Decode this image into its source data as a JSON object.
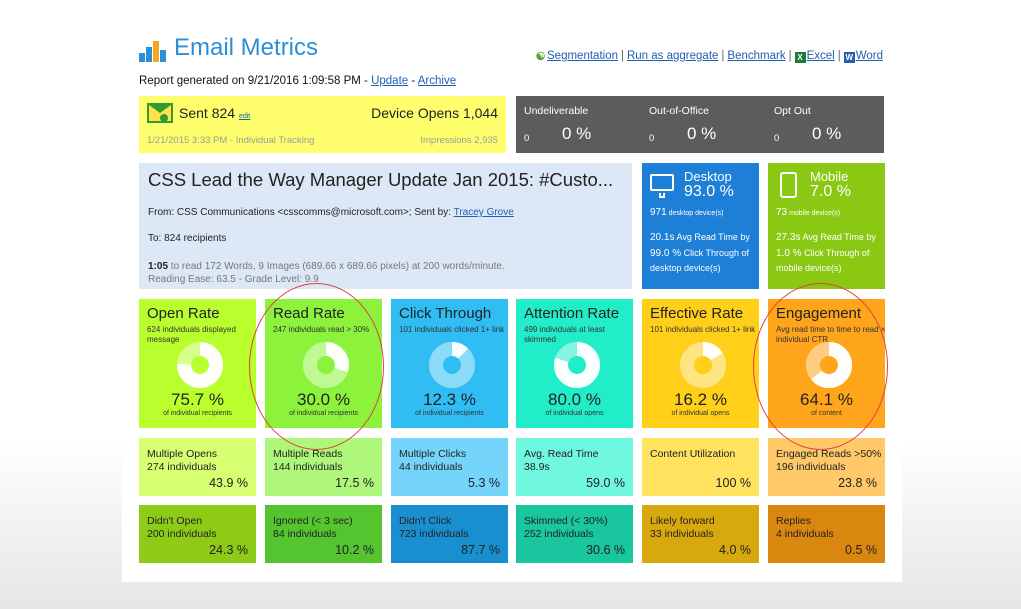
{
  "app": {
    "title": "Email Metrics",
    "logo_icon": "bar-chart-icon"
  },
  "toolbar": {
    "segmentation": "Segmentation",
    "run_aggregate": "Run as aggregate",
    "benchmark": "Benchmark",
    "excel": "Excel",
    "word": "Word"
  },
  "report": {
    "prefix": "Report generated on 9/21/2016 1:09:58 PM - ",
    "update": "Update",
    "dash": " - ",
    "archive": "Archive"
  },
  "sent": {
    "label": "Sent 824",
    "edit": "edit",
    "device_opens": "Device Opens 1,044",
    "date": "1/21/2015 3:33 PM - Individual Tracking",
    "impressions": "Impressions 2,935"
  },
  "status": [
    {
      "label": "Undeliverable",
      "count": "0",
      "pct": "0 %"
    },
    {
      "label": "Out-of-Office",
      "count": "0",
      "pct": "0 %"
    },
    {
      "label": "Opt Out",
      "count": "0",
      "pct": "0 %"
    }
  ],
  "message": {
    "subject": "CSS Lead the Way Manager Update Jan 2015: #Custo...",
    "from": "From: CSS Communications <csscomms@microsoft.com>; Sent by: ",
    "sender": "Tracey Grove",
    "to": "To:  824 recipients",
    "read_time": "1:05",
    "read_detail": " to read 172 Words, 9 Images (689.66 x 689.66 pixels) at 200 words/minute.",
    "reading_ease": "Reading Ease: 63.5 - Grade Level: 9.9"
  },
  "devices": [
    {
      "title": "Desktop",
      "pct": "93.0 %",
      "devices": "971",
      "devices_label": " desktop device(s)",
      "avg_read": "20.1s",
      "avg_read_label": " Avg Read Time by",
      "ct": "99.0 %",
      "ct_label": " Click Through of",
      "ct_tail": "desktop device(s)",
      "icon": "monitor-icon",
      "color": "#1d7fd6"
    },
    {
      "title": "Mobile",
      "pct": "7.0 %",
      "devices": "73",
      "devices_label": " mobile device(s)",
      "avg_read": "27.3s",
      "avg_read_label": " Avg Read Time by",
      "ct": "1.0 %",
      "ct_label": " Click Through of",
      "ct_tail": "mobile device(s)",
      "icon": "phone-icon",
      "color": "#8bc814"
    }
  ],
  "metrics": [
    {
      "title": "Open Rate",
      "sub": "624 individuals displayed message",
      "value": "75.7 %",
      "foot": "of individual recipients",
      "fraction": 0.757,
      "color": "#b9ff2e"
    },
    {
      "title": "Read Rate",
      "sub": "247 individuals read > 30%",
      "value": "30.0 %",
      "foot": "of individual recipients",
      "fraction": 0.3,
      "color": "#8cf23c"
    },
    {
      "title": "Click Through",
      "sub": "101 individuals clicked 1+ link",
      "value": "12.3 %",
      "foot": "of individual recipients",
      "fraction": 0.123,
      "color": "#2fbdf4"
    },
    {
      "title": "Attention Rate",
      "sub": "499 individuals at least skimmed",
      "value": "80.0 %",
      "foot": "of individual opens",
      "fraction": 0.8,
      "color": "#22edc9"
    },
    {
      "title": "Effective Rate",
      "sub": "101 individuals clicked 1+ link",
      "value": "16.2 %",
      "foot": "of individual opens",
      "fraction": 0.162,
      "color": "#ffcf1a"
    },
    {
      "title": "Engagement",
      "sub": "Avg read time to time to read × individual CTR",
      "value": "64.1 %",
      "foot": "of content",
      "fraction": 0.641,
      "color": "#ffa51c"
    }
  ],
  "row2": [
    {
      "label": "Multiple Opens",
      "sub": "274 individuals",
      "value": "43.9 %",
      "color": "#d6ff72"
    },
    {
      "label": "Multiple Reads",
      "sub": "144 individuals",
      "value": "17.5 %",
      "color": "#aef77a"
    },
    {
      "label": "Multiple Clicks",
      "sub": "44 individuals",
      "value": "5.3 %",
      "color": "#74d4fa"
    },
    {
      "label": "Avg. Read Time",
      "sub": "38.9s",
      "value": "59.0 %",
      "color": "#6ff7e0"
    },
    {
      "label": "Content Utilization",
      "sub": "",
      "value": "100 %",
      "color": "#ffe25e"
    },
    {
      "label": "Engaged Reads >50%",
      "sub": "196 individuals",
      "value": "23.8 %",
      "color": "#ffc96a"
    }
  ],
  "row3": [
    {
      "label": "Didn't Open",
      "sub": "200 individuals",
      "value": "24.3 %",
      "color": "#8ecb16"
    },
    {
      "label": "Ignored (< 3 sec)",
      "sub": "84 individuals",
      "value": "10.2 %",
      "color": "#55c52f"
    },
    {
      "label": "Didn't Click",
      "sub": "723 individuals",
      "value": "87.7 %",
      "color": "#1a8fd0"
    },
    {
      "label": "Skimmed (< 30%)",
      "sub": "252 individuals",
      "value": "30.6 %",
      "color": "#19c69e"
    },
    {
      "label": "Likely forward",
      "sub": "33 individuals",
      "value": "4.0 %",
      "color": "#d8a90e"
    },
    {
      "label": "Replies",
      "sub": "4 individuals",
      "value": "0.5 %",
      "color": "#d9870f"
    }
  ]
}
